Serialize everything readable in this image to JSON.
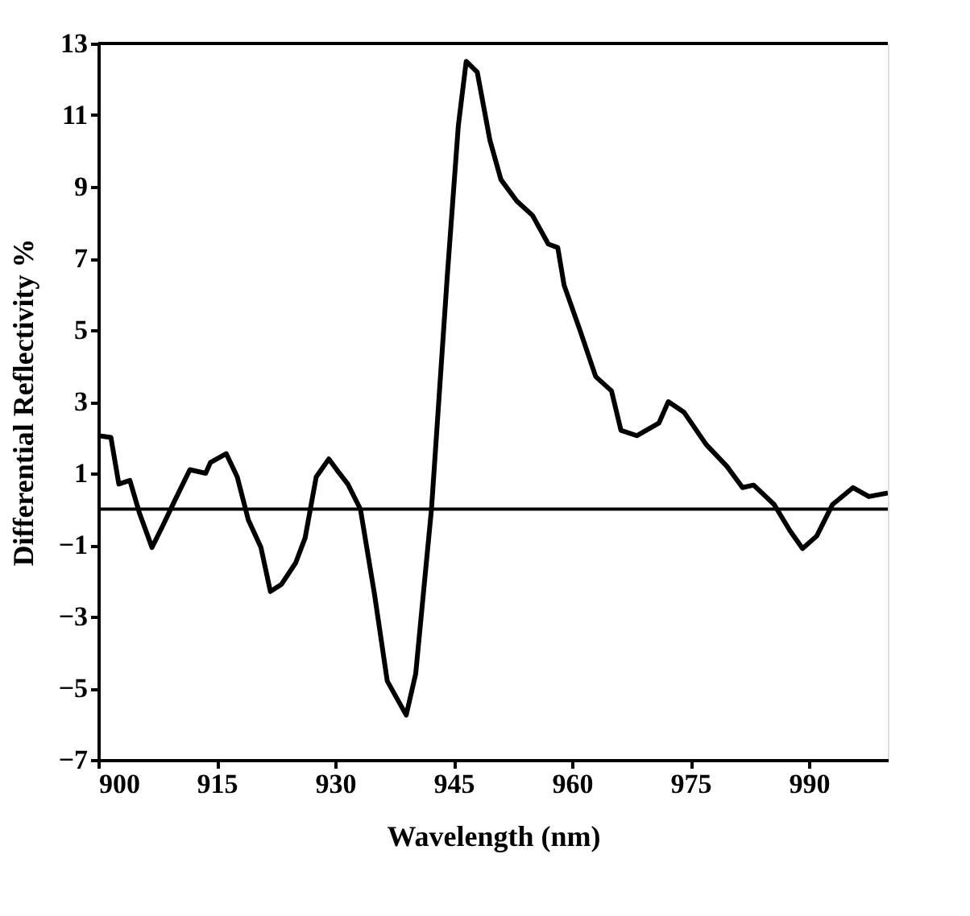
{
  "chart_data": {
    "type": "line",
    "xlabel": "Wavelength (nm)",
    "ylabel": "Differential Reflectivity %",
    "xlim": [
      900,
      1000
    ],
    "ylim": [
      -7,
      13
    ],
    "xticks": [
      900,
      915,
      930,
      945,
      960,
      975,
      990
    ],
    "yticks": [
      -7,
      -5,
      -3,
      -1,
      1,
      3,
      5,
      7,
      9,
      11,
      13
    ],
    "grid": false,
    "marker": "none",
    "line_style": "solid",
    "ref_lines": [
      {
        "axis": "y",
        "value": 0,
        "color": "#000000"
      }
    ],
    "series": [
      {
        "color": "#000000",
        "x": [
          900,
          901.6,
          902.6,
          904,
          905.2,
          906.8,
          908.2,
          909.6,
          911.6,
          913.6,
          914.2,
          916.2,
          917.6,
          919,
          920.6,
          921.8,
          923.2,
          925,
          926.2,
          927.6,
          929.2,
          930.2,
          931.6,
          933.2,
          935,
          936.6,
          939,
          940.2,
          942.2,
          944.2,
          945.6,
          946.6,
          948,
          949.6,
          951,
          953,
          955,
          957,
          958.2,
          959,
          961,
          963,
          965,
          966.2,
          968.2,
          971,
          972.2,
          974.2,
          977,
          979.6,
          981.6,
          983,
          985.6,
          987.6,
          989.2,
          991,
          993,
          995.6,
          997.6,
          1000
        ],
        "values": [
          2.05,
          2.0,
          0.7,
          0.8,
          -0.1,
          -1.07,
          -0.45,
          0.2,
          1.1,
          1.0,
          1.3,
          1.55,
          0.9,
          -0.3,
          -1.07,
          -2.3,
          -2.1,
          -1.5,
          -0.8,
          0.9,
          1.4,
          1.1,
          0.7,
          0,
          -2.4,
          -4.8,
          -5.75,
          -4.6,
          0,
          6.5,
          10.7,
          12.5,
          12.2,
          10.3,
          9.2,
          8.6,
          8.2,
          7.4,
          7.3,
          6.25,
          5.0,
          3.7,
          3.3,
          2.2,
          2.05,
          2.4,
          3.0,
          2.7,
          1.8,
          1.2,
          0.6,
          0.67,
          0.13,
          -0.6,
          -1.1,
          -0.75,
          0.13,
          0.6,
          0.35,
          0.45
        ]
      }
    ]
  }
}
